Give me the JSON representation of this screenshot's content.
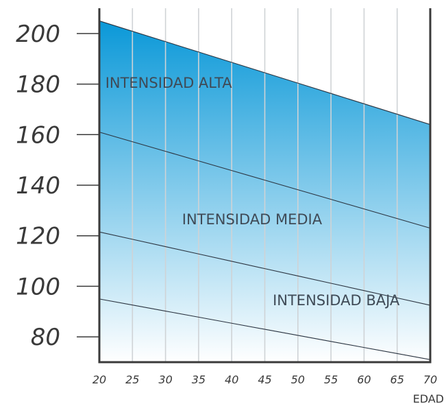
{
  "chart_data": {
    "type": "line",
    "title": "",
    "xlabel": "EDAD",
    "ylabel": "",
    "x": [
      20,
      25,
      30,
      35,
      40,
      45,
      50,
      55,
      60,
      65,
      70
    ],
    "xlim": [
      20,
      70
    ],
    "ylim": [
      70,
      210
    ],
    "xticks": [
      "20",
      "25",
      "30",
      "35",
      "40",
      "45",
      "50",
      "55",
      "60",
      "65",
      "70"
    ],
    "yticks": [
      "80",
      "100",
      "120",
      "140",
      "160",
      "180",
      "200"
    ],
    "ytick_values": [
      80,
      100,
      120,
      140,
      160,
      180,
      200
    ],
    "grid": "vertical",
    "boundaries": [
      {
        "values": [
          205,
          200.9,
          196.8,
          192.7,
          188.6,
          184.5,
          180.4,
          176.3,
          172.2,
          168.1,
          164
        ]
      },
      {
        "values": [
          161,
          157.2,
          153.4,
          149.6,
          145.8,
          142,
          138.2,
          134.4,
          130.6,
          126.8,
          123
        ]
      },
      {
        "values": [
          121.5,
          118.6,
          115.7,
          112.8,
          109.9,
          107,
          104.1,
          101.2,
          98.3,
          95.4,
          92.5
        ]
      },
      {
        "values": [
          95,
          92.6,
          90.2,
          87.8,
          85.4,
          83,
          80.6,
          78.2,
          75.8,
          73.4,
          71
        ]
      }
    ],
    "zones": [
      {
        "label": "INTENSIDAD ALTA",
        "x": 20.9,
        "y": 178.5
      },
      {
        "label": "INTENSIDAD MEDIA",
        "x": 32.5,
        "y": 124.5
      },
      {
        "label": "INTENSIDAD BAJA",
        "x": 46.2,
        "y": 92.5
      }
    ],
    "colors": {
      "gradient_top": "#0a98d8",
      "gradient_bottom": "#ffffff",
      "grid": "#cfd3d6",
      "axis": "#3a3a3a",
      "boundary": "#2b3440"
    }
  }
}
